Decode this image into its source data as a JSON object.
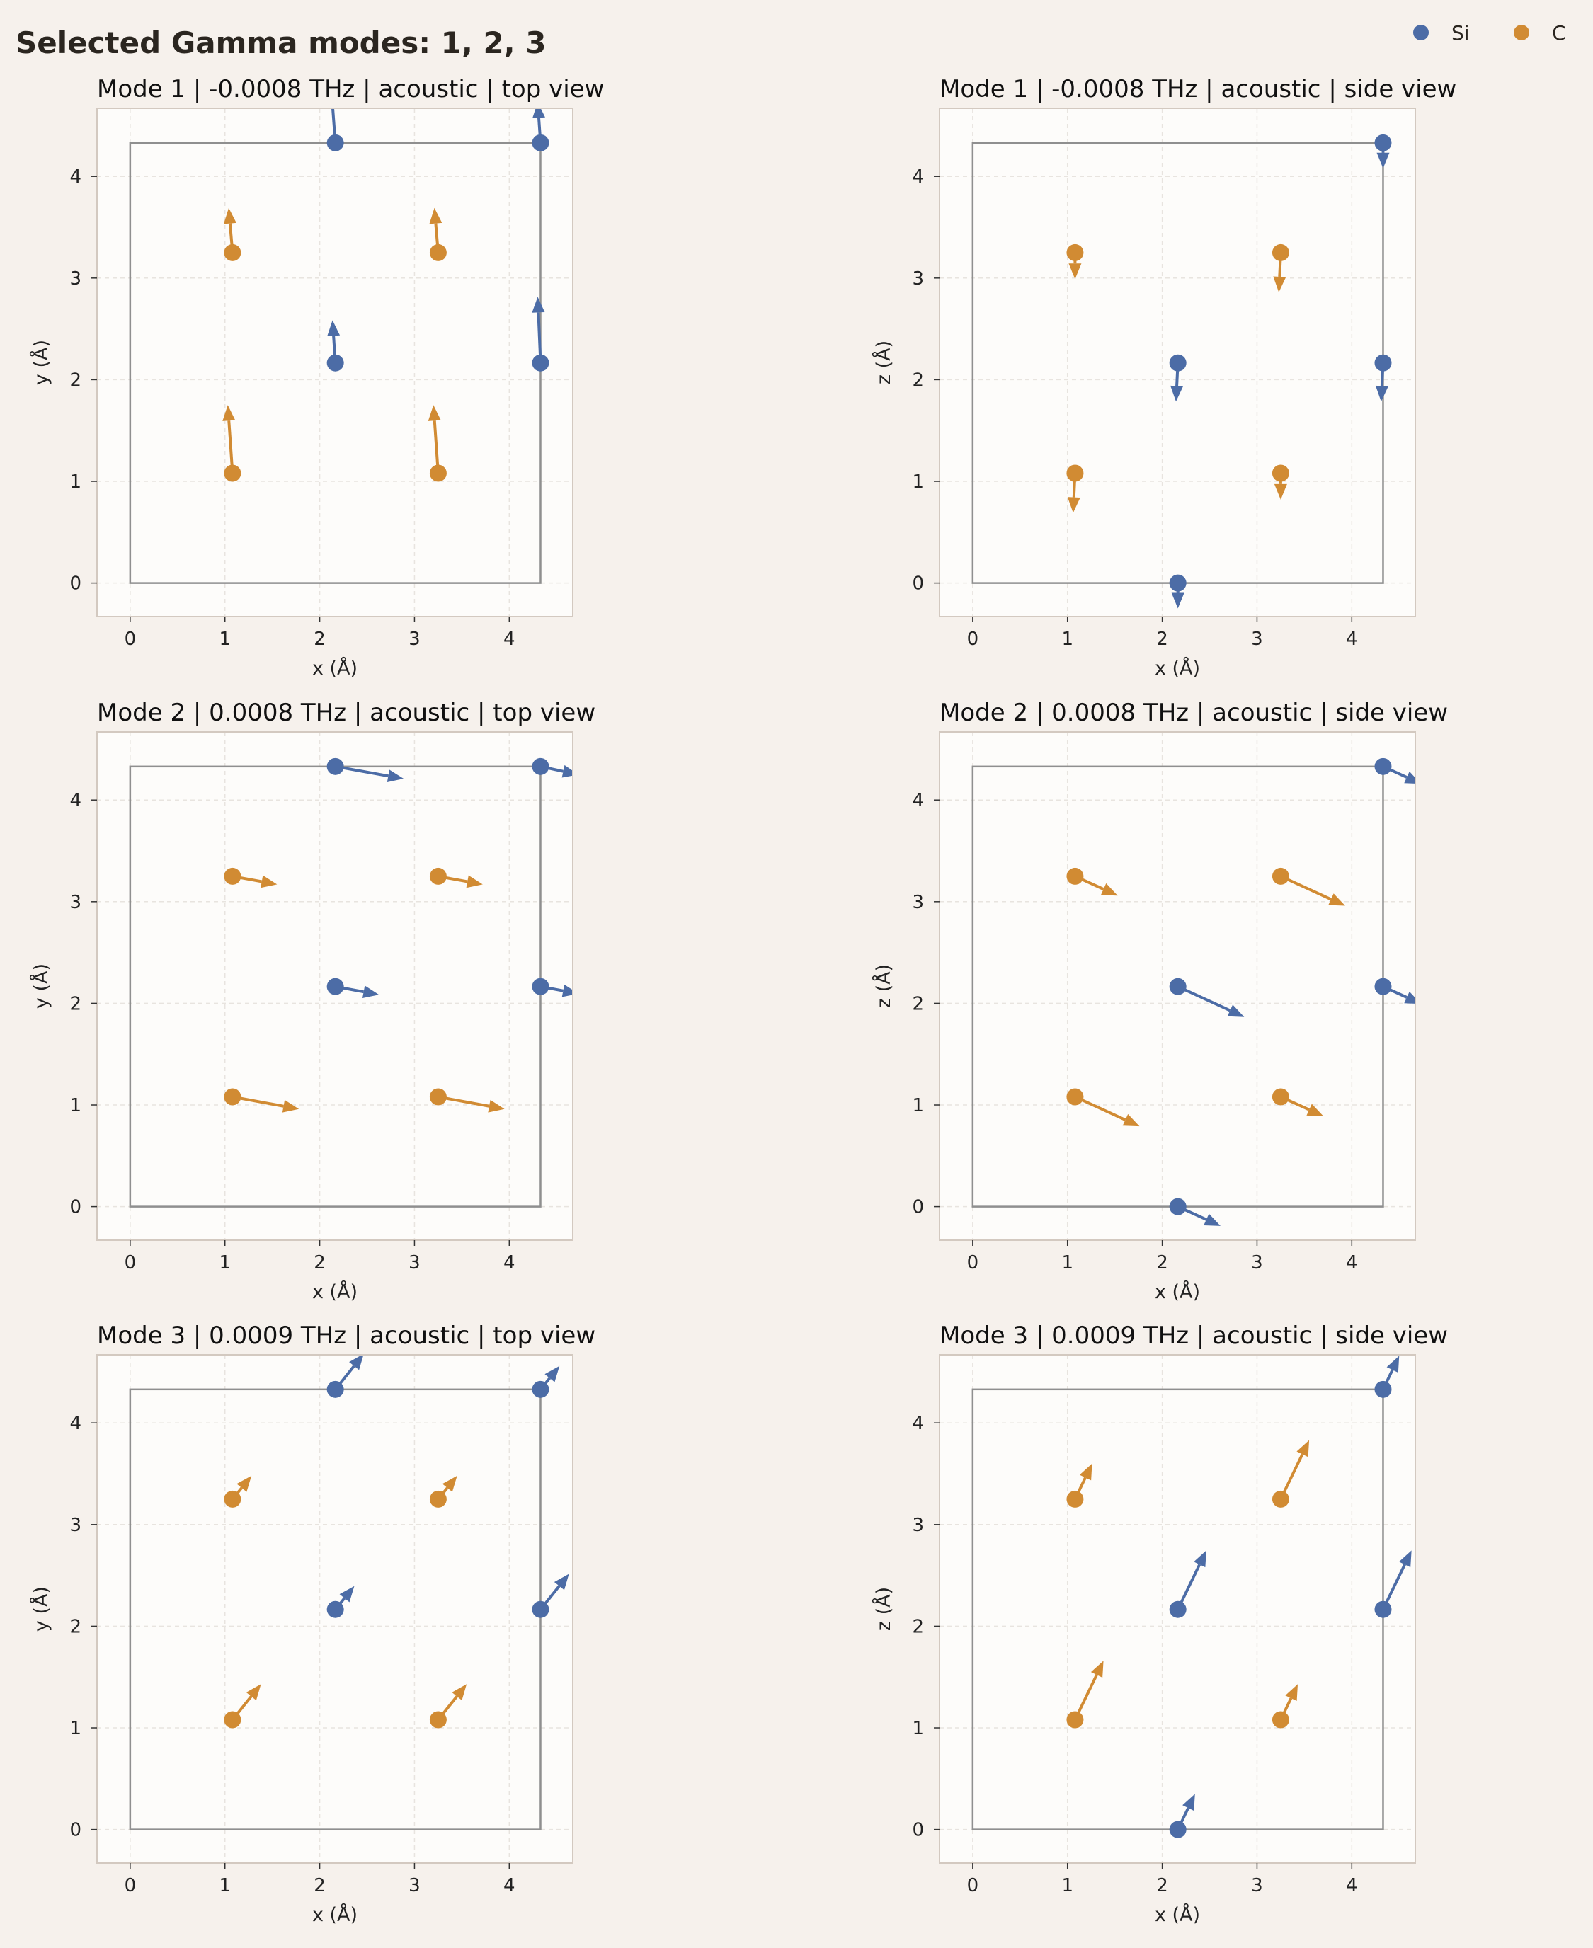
{
  "figure": {
    "title": "Selected Gamma modes: 1, 2, 3",
    "legend": [
      {
        "label": "Si",
        "color": "#4c6ca6"
      },
      {
        "label": "C",
        "color": "#d18b33"
      }
    ],
    "legend_placement": "top-right"
  },
  "colors": {
    "background": "#f6f1ec",
    "plot_background": "#fdfcfa",
    "Si": "#4c6ca6",
    "C": "#d18b33",
    "cell_line": "#8f8f8f",
    "grid": "#e8e4df",
    "axes_frame": "#d3c9c0"
  },
  "chart_data": [
    {
      "type": "scatter",
      "title": "Mode 1  |  -0.0008 THz  |  acoustic  |  top view",
      "xlabel": "x (Å)",
      "ylabel": "y (Å)",
      "xlim": [
        -0.35,
        4.67
      ],
      "ylim": [
        -0.33,
        4.67
      ],
      "xticks": [
        0,
        1,
        2,
        3,
        4
      ],
      "yticks": [
        0,
        1,
        2,
        3,
        4
      ],
      "grid": true,
      "cell": [
        0,
        0,
        4.33,
        4.33
      ],
      "points": [
        {
          "species": "Si",
          "x": 2.165,
          "y": 4.33,
          "dx": -0.05,
          "dy": 0.62
        },
        {
          "species": "Si",
          "x": 4.33,
          "y": 4.33,
          "dx": -0.03,
          "dy": 0.4
        },
        {
          "species": "Si",
          "x": 2.165,
          "y": 2.165,
          "dx": -0.03,
          "dy": 0.42
        },
        {
          "species": "Si",
          "x": 4.33,
          "y": 2.165,
          "dx": -0.03,
          "dy": 0.65
        },
        {
          "species": "C",
          "x": 1.08,
          "y": 3.25,
          "dx": -0.04,
          "dy": 0.44
        },
        {
          "species": "C",
          "x": 3.25,
          "y": 3.25,
          "dx": -0.04,
          "dy": 0.44
        },
        {
          "species": "C",
          "x": 1.08,
          "y": 1.08,
          "dx": -0.05,
          "dy": 0.67
        },
        {
          "species": "C",
          "x": 3.25,
          "y": 1.08,
          "dx": -0.05,
          "dy": 0.67
        }
      ]
    },
    {
      "type": "scatter",
      "title": "Mode 1  |  -0.0008 THz  |  acoustic  |  side view",
      "xlabel": "x (Å)",
      "ylabel": "z (Å)",
      "xlim": [
        -0.35,
        4.67
      ],
      "ylim": [
        -0.33,
        4.67
      ],
      "xticks": [
        0,
        1,
        2,
        3,
        4
      ],
      "yticks": [
        0,
        1,
        2,
        3,
        4
      ],
      "grid": true,
      "cell": [
        0,
        0,
        4.33,
        4.33
      ],
      "points": [
        {
          "species": "Si",
          "x": 4.33,
          "y": 4.33,
          "dx": 0.0,
          "dy": -0.25
        },
        {
          "species": "Si",
          "x": 2.165,
          "y": 2.165,
          "dx": -0.02,
          "dy": -0.38
        },
        {
          "species": "Si",
          "x": 4.33,
          "y": 2.165,
          "dx": -0.02,
          "dy": -0.38
        },
        {
          "species": "Si",
          "x": 2.165,
          "y": 0.0,
          "dx": 0.0,
          "dy": -0.25
        },
        {
          "species": "C",
          "x": 1.08,
          "y": 3.25,
          "dx": 0.0,
          "dy": -0.26
        },
        {
          "species": "C",
          "x": 3.25,
          "y": 3.25,
          "dx": -0.02,
          "dy": -0.39
        },
        {
          "species": "C",
          "x": 1.08,
          "y": 1.08,
          "dx": -0.02,
          "dy": -0.39
        },
        {
          "species": "C",
          "x": 3.25,
          "y": 1.08,
          "dx": 0.0,
          "dy": -0.26
        }
      ]
    },
    {
      "type": "scatter",
      "title": "Mode 2  |  0.0008 THz  |  acoustic  |  top view",
      "xlabel": "x (Å)",
      "ylabel": "y (Å)",
      "xlim": [
        -0.35,
        4.67
      ],
      "ylim": [
        -0.33,
        4.67
      ],
      "xticks": [
        0,
        1,
        2,
        3,
        4
      ],
      "yticks": [
        0,
        1,
        2,
        3,
        4
      ],
      "grid": true,
      "cell": [
        0,
        0,
        4.33,
        4.33
      ],
      "points": [
        {
          "species": "Si",
          "x": 2.165,
          "y": 4.33,
          "dx": 0.72,
          "dy": -0.12
        },
        {
          "species": "Si",
          "x": 4.33,
          "y": 4.33,
          "dx": 0.4,
          "dy": -0.08
        },
        {
          "species": "Si",
          "x": 2.165,
          "y": 2.165,
          "dx": 0.46,
          "dy": -0.08
        },
        {
          "species": "Si",
          "x": 4.33,
          "y": 2.165,
          "dx": 0.4,
          "dy": -0.07
        },
        {
          "species": "C",
          "x": 1.08,
          "y": 3.25,
          "dx": 0.47,
          "dy": -0.08
        },
        {
          "species": "C",
          "x": 3.25,
          "y": 3.25,
          "dx": 0.47,
          "dy": -0.08
        },
        {
          "species": "C",
          "x": 1.08,
          "y": 1.08,
          "dx": 0.7,
          "dy": -0.12
        },
        {
          "species": "C",
          "x": 3.25,
          "y": 1.08,
          "dx": 0.7,
          "dy": -0.12
        }
      ]
    },
    {
      "type": "scatter",
      "title": "Mode 2  |  0.0008 THz  |  acoustic  |  side view",
      "xlabel": "x (Å)",
      "ylabel": "z (Å)",
      "xlim": [
        -0.35,
        4.67
      ],
      "ylim": [
        -0.33,
        4.67
      ],
      "xticks": [
        0,
        1,
        2,
        3,
        4
      ],
      "yticks": [
        0,
        1,
        2,
        3,
        4
      ],
      "grid": true,
      "cell": [
        0,
        0,
        4.33,
        4.33
      ],
      "points": [
        {
          "species": "Si",
          "x": 4.33,
          "y": 4.33,
          "dx": 0.4,
          "dy": -0.17
        },
        {
          "species": "Si",
          "x": 2.165,
          "y": 2.165,
          "dx": 0.7,
          "dy": -0.3
        },
        {
          "species": "Si",
          "x": 4.33,
          "y": 2.165,
          "dx": 0.4,
          "dy": -0.17
        },
        {
          "species": "Si",
          "x": 2.165,
          "y": 0.0,
          "dx": 0.45,
          "dy": -0.19
        },
        {
          "species": "C",
          "x": 1.08,
          "y": 3.25,
          "dx": 0.45,
          "dy": -0.19
        },
        {
          "species": "C",
          "x": 3.25,
          "y": 3.25,
          "dx": 0.68,
          "dy": -0.29
        },
        {
          "species": "C",
          "x": 1.08,
          "y": 1.08,
          "dx": 0.68,
          "dy": -0.29
        },
        {
          "species": "C",
          "x": 3.25,
          "y": 1.08,
          "dx": 0.45,
          "dy": -0.19
        }
      ]
    },
    {
      "type": "scatter",
      "title": "Mode 3  |  0.0009 THz  |  acoustic  |  top view",
      "xlabel": "x (Å)",
      "ylabel": "y (Å)",
      "xlim": [
        -0.35,
        4.67
      ],
      "ylim": [
        -0.33,
        4.67
      ],
      "xticks": [
        0,
        1,
        2,
        3,
        4
      ],
      "yticks": [
        0,
        1,
        2,
        3,
        4
      ],
      "grid": true,
      "cell": [
        0,
        0,
        4.33,
        4.33
      ],
      "points": [
        {
          "species": "Si",
          "x": 2.165,
          "y": 4.33,
          "dx": 0.3,
          "dy": 0.35
        },
        {
          "species": "Si",
          "x": 4.33,
          "y": 4.33,
          "dx": 0.2,
          "dy": 0.23
        },
        {
          "species": "Si",
          "x": 2.165,
          "y": 2.165,
          "dx": 0.2,
          "dy": 0.23
        },
        {
          "species": "Si",
          "x": 4.33,
          "y": 2.165,
          "dx": 0.3,
          "dy": 0.35
        },
        {
          "species": "C",
          "x": 1.08,
          "y": 3.25,
          "dx": 0.2,
          "dy": 0.23
        },
        {
          "species": "C",
          "x": 3.25,
          "y": 3.25,
          "dx": 0.2,
          "dy": 0.23
        },
        {
          "species": "C",
          "x": 1.08,
          "y": 1.08,
          "dx": 0.3,
          "dy": 0.35
        },
        {
          "species": "C",
          "x": 3.25,
          "y": 1.08,
          "dx": 0.3,
          "dy": 0.35
        }
      ]
    },
    {
      "type": "scatter",
      "title": "Mode 3  |  0.0009 THz  |  acoustic  |  side view",
      "xlabel": "x (Å)",
      "ylabel": "z (Å)",
      "xlim": [
        -0.35,
        4.67
      ],
      "ylim": [
        -0.33,
        4.67
      ],
      "xticks": [
        0,
        1,
        2,
        3,
        4
      ],
      "yticks": [
        0,
        1,
        2,
        3,
        4
      ],
      "grid": true,
      "cell": [
        0,
        0,
        4.33,
        4.33
      ],
      "points": [
        {
          "species": "Si",
          "x": 4.33,
          "y": 4.33,
          "dx": 0.17,
          "dy": 0.33
        },
        {
          "species": "Si",
          "x": 2.165,
          "y": 2.165,
          "dx": 0.3,
          "dy": 0.58
        },
        {
          "species": "Si",
          "x": 4.33,
          "y": 2.165,
          "dx": 0.3,
          "dy": 0.58
        },
        {
          "species": "Si",
          "x": 2.165,
          "y": 0.0,
          "dx": 0.18,
          "dy": 0.35
        },
        {
          "species": "C",
          "x": 1.08,
          "y": 3.25,
          "dx": 0.18,
          "dy": 0.35
        },
        {
          "species": "C",
          "x": 3.25,
          "y": 3.25,
          "dx": 0.3,
          "dy": 0.58
        },
        {
          "species": "C",
          "x": 1.08,
          "y": 1.08,
          "dx": 0.3,
          "dy": 0.58
        },
        {
          "species": "C",
          "x": 3.25,
          "y": 1.08,
          "dx": 0.18,
          "dy": 0.35
        }
      ]
    }
  ]
}
